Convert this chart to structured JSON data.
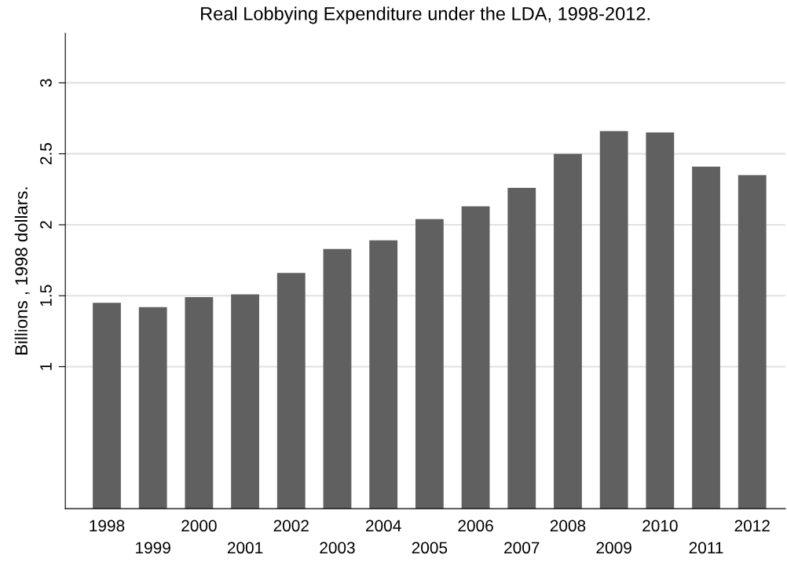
{
  "chart_data": {
    "type": "bar",
    "title": "Real Lobbying Expenditure under the LDA, 1998-2012.",
    "ylabel": "Billions , 1998 dollars.",
    "categories": [
      "1998",
      "1999",
      "2000",
      "2001",
      "2002",
      "2003",
      "2004",
      "2005",
      "2006",
      "2007",
      "2008",
      "2009",
      "2010",
      "2011",
      "2012"
    ],
    "values": [
      1.45,
      1.42,
      1.49,
      1.51,
      1.66,
      1.83,
      1.89,
      2.04,
      2.13,
      2.26,
      2.5,
      2.66,
      2.65,
      2.41,
      2.35
    ],
    "color": "#606060",
    "ylim": [
      0,
      3.35
    ],
    "yticks": [
      1,
      1.5,
      2,
      2.5,
      3
    ],
    "grid": "y",
    "legend": false
  }
}
